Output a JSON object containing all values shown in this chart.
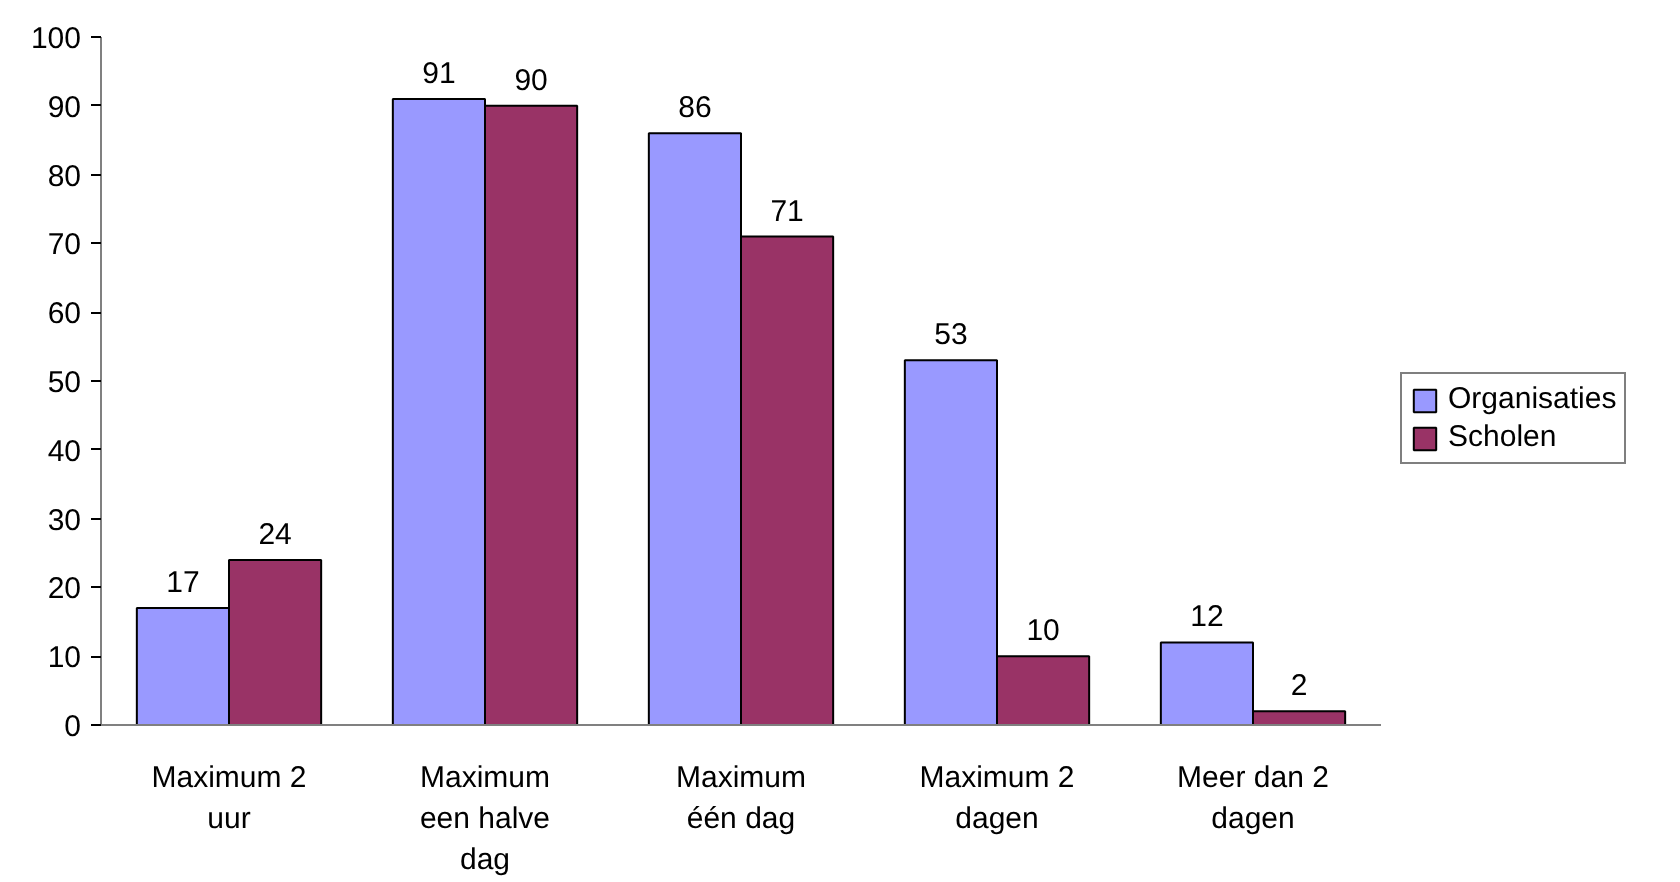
{
  "chart_data": {
    "type": "bar",
    "categories": [
      "Maximum 2 uur",
      "Maximum een halve dag",
      "Maximum één dag",
      "Maximum 2 dagen",
      "Meer dan 2 dagen"
    ],
    "series": [
      {
        "name": "Organisaties",
        "color": "#9999ff",
        "values": [
          17,
          91,
          86,
          53,
          12
        ]
      },
      {
        "name": "Scholen",
        "color": "#993366",
        "values": [
          24,
          90,
          71,
          10,
          2
        ]
      }
    ],
    "ylim": [
      0,
      100
    ],
    "yticks": [
      0,
      10,
      20,
      30,
      40,
      50,
      60,
      70,
      80,
      90,
      100
    ],
    "grid": false,
    "legend": "right",
    "data_labels": true
  }
}
